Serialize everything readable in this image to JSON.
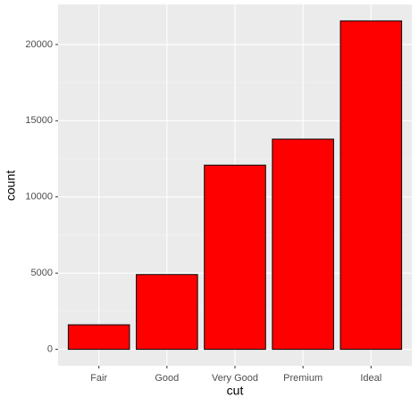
{
  "chart_data": {
    "type": "bar",
    "categories": [
      "Fair",
      "Good",
      "Very Good",
      "Premium",
      "Ideal"
    ],
    "values": [
      1610,
      4906,
      12082,
      13791,
      21551
    ],
    "color": "#ff0000",
    "edge_color": "#000000",
    "x_label": "cut",
    "y_label": "count",
    "ylim": [
      -1077.55,
      22628.55
    ],
    "yticks": [
      0,
      5000,
      10000,
      15000,
      20000
    ],
    "yminor": [
      2500,
      7500,
      12500,
      17500
    ],
    "grid": true
  }
}
